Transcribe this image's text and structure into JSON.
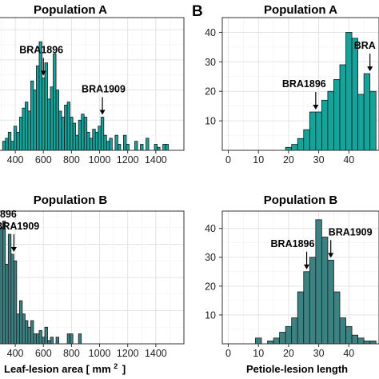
{
  "panel_labels": {
    "right": "B"
  },
  "x_axis_labels": {
    "left": {
      "main": "Leaf-lesion area [ mm",
      "sup": "2",
      "tail": "]"
    },
    "right": "Petiole-lesion length"
  },
  "colors": {
    "popA": "#15a39c",
    "popB": "#3d8283",
    "outline": "#1a1a1a"
  },
  "chart_data": [
    {
      "type": "bar",
      "panel": "top-left",
      "title": "Population A",
      "xlim": [
        280,
        1600
      ],
      "x_ticks": [
        400,
        600,
        800,
        1000,
        1200,
        1400
      ],
      "ylim": [
        0,
        44
      ],
      "y_ticks": [],
      "bin_width": 20,
      "bins_x": [
        320,
        340,
        360,
        380,
        400,
        420,
        440,
        460,
        480,
        500,
        520,
        540,
        560,
        580,
        600,
        620,
        640,
        660,
        680,
        700,
        720,
        740,
        760,
        780,
        800,
        820,
        840,
        860,
        880,
        900,
        920,
        940,
        960,
        980,
        1000,
        1020,
        1040,
        1060,
        1080,
        1100,
        1120,
        1140,
        1160,
        1180,
        1200,
        1220,
        1240,
        1260,
        1280,
        1300,
        1320,
        1340,
        1360,
        1380,
        1400,
        1420,
        1440,
        1460,
        1480
      ],
      "counts": [
        3,
        4,
        6,
        3,
        8,
        6,
        11,
        14,
        16,
        13,
        23,
        20,
        28,
        36,
        24,
        29,
        17,
        21,
        32,
        20,
        13,
        11,
        15,
        16,
        11,
        9,
        5,
        10,
        12,
        11,
        6,
        4,
        7,
        6,
        8,
        11,
        5,
        3,
        4,
        0,
        5,
        2,
        0,
        5,
        2,
        0,
        0,
        3,
        0,
        2,
        0,
        4,
        0,
        0,
        2,
        1,
        0,
        2,
        2
      ],
      "annotations": [
        {
          "label": "BRA1896",
          "x": 600
        },
        {
          "label": "BRA1909",
          "x": 1020
        }
      ]
    },
    {
      "type": "bar",
      "panel": "top-right",
      "title": "Population A",
      "xlim": [
        -2,
        50
      ],
      "x_ticks": [
        0,
        10,
        20,
        30,
        40
      ],
      "ylim": [
        0,
        45
      ],
      "y_ticks": [
        10,
        20,
        30,
        40
      ],
      "bin_width": 2,
      "bins_x": [
        20,
        22,
        24,
        26,
        28,
        30,
        32,
        34,
        36,
        38,
        40,
        42,
        44,
        46,
        48
      ],
      "counts": [
        1,
        2,
        4,
        7,
        13,
        13,
        17,
        20,
        24,
        29,
        40,
        38,
        19,
        26,
        20
      ],
      "annotations": [
        {
          "label": "BRA1896",
          "x": 29
        },
        {
          "label": "BRA",
          "x": 47
        }
      ]
    },
    {
      "type": "bar",
      "panel": "bottom-left",
      "title": "Population B",
      "xlim": [
        280,
        1600
      ],
      "x_ticks": [
        400,
        600,
        800,
        1000,
        1200,
        1400
      ],
      "ylim": [
        0,
        40
      ],
      "y_ticks": [],
      "bin_width": 20,
      "bins_x": [
        300,
        320,
        340,
        360,
        380,
        400,
        420,
        440,
        460,
        480,
        500,
        520,
        540,
        560,
        580,
        600,
        620,
        640,
        660,
        680,
        700,
        720,
        740,
        760,
        780,
        800,
        820,
        840,
        860
      ],
      "counts": [
        35,
        37,
        24,
        33,
        27,
        25,
        9,
        13,
        9,
        7,
        5,
        7,
        3,
        3,
        4,
        2,
        5,
        1,
        2,
        0,
        2,
        0,
        0,
        0,
        3,
        3,
        0,
        0,
        3
      ],
      "annotations": [
        {
          "label": "896",
          "x": 300
        },
        {
          "label": "BRA1909",
          "x": 390
        }
      ]
    },
    {
      "type": "bar",
      "panel": "bottom-right",
      "title": "Population B",
      "xlim": [
        -2,
        50
      ],
      "x_ticks": [
        0,
        10,
        20,
        30,
        40
      ],
      "ylim": [
        0,
        46
      ],
      "y_ticks": [
        10,
        20,
        30,
        40
      ],
      "bin_width": 2,
      "bins_x": [
        10,
        12,
        14,
        16,
        18,
        20,
        22,
        24,
        26,
        28,
        30,
        32,
        34,
        36,
        38,
        40,
        42,
        44,
        46,
        48
      ],
      "counts": [
        2,
        0,
        1,
        2,
        4,
        6,
        9,
        18,
        25,
        30,
        43,
        37,
        29,
        18,
        9,
        6,
        3,
        2,
        1,
        1
      ],
      "annotations": [
        {
          "label": "BRA1896",
          "x": 26
        },
        {
          "label": "BRA1909",
          "x": 34
        }
      ]
    }
  ]
}
